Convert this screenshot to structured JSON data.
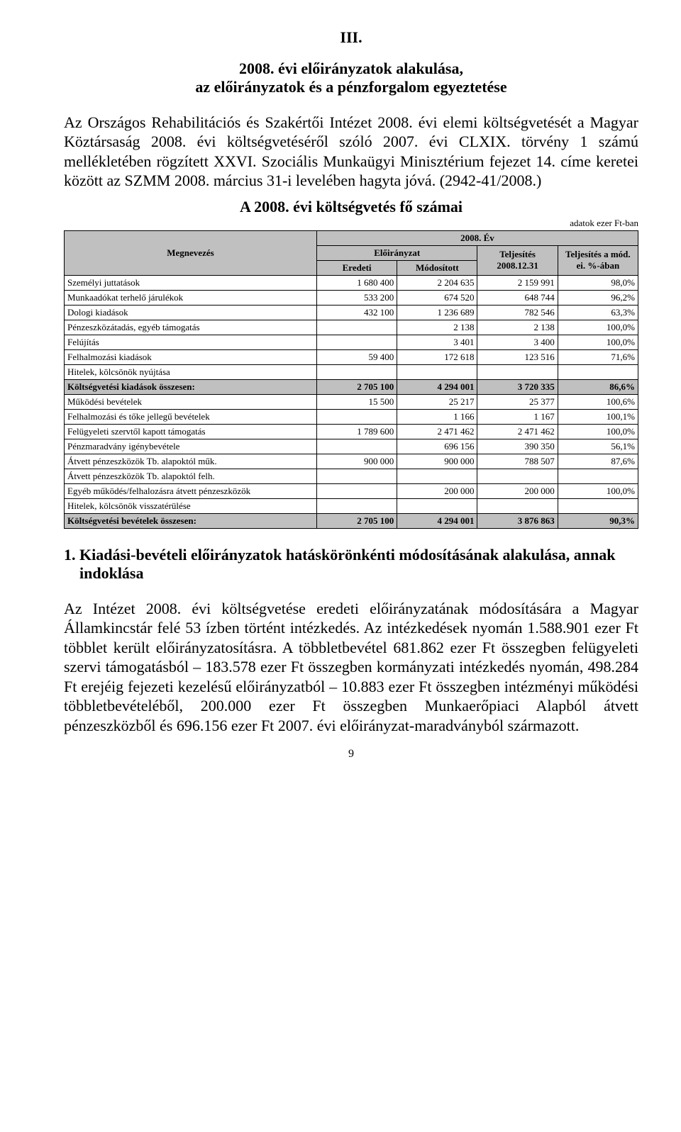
{
  "header": {
    "section_number": "III.",
    "title_line1": "2008. évi előirányzatok alakulása,",
    "title_line2": "az előirányzatok és a pénzforgalom egyeztetése"
  },
  "intro_paragraph": "Az Országos Rehabilitációs és Szakértői Intézet 2008. évi elemi költségvetését a Magyar Köztársaság 2008. évi költségvetéséről szóló 2007. évi CLXIX. törvény 1 számú mellékletében rögzített XXVI. Szociális Munkaügyi Minisztérium fejezet 14. címe keretei között az SZMM 2008. március 31-i levelében hagyta jóvá. (2942-41/2008.)",
  "table_title": "A 2008. évi költségvetés fő számai",
  "units_label": "adatok ezer Ft-ban",
  "table": {
    "head": {
      "megnevezes": "Megnevezés",
      "ev": "2008. Év",
      "eloiranyzat": "Előirányzat",
      "eredeti": "Eredeti",
      "modositott": "Módosított",
      "teljesites": "Teljesítés 2008.12.31",
      "teljesites_a": "Teljesítés a mód. ei. %-ában"
    },
    "rows": [
      {
        "label": "Személyi juttatások",
        "c1": "1 680 400",
        "c2": "2 204 635",
        "c3": "2 159 991",
        "c4": "98,0%",
        "total": false
      },
      {
        "label": "Munkaadókat terhelő járulékok",
        "c1": "533 200",
        "c2": "674 520",
        "c3": "648 744",
        "c4": "96,2%",
        "total": false
      },
      {
        "label": "Dologi kiadások",
        "c1": "432 100",
        "c2": "1 236 689",
        "c3": "782 546",
        "c4": "63,3%",
        "total": false
      },
      {
        "label": "Pénzeszközátadás, egyéb támogatás",
        "c1": "",
        "c2": "2 138",
        "c3": "2 138",
        "c4": "100,0%",
        "total": false
      },
      {
        "label": "Felújítás",
        "c1": "",
        "c2": "3 401",
        "c3": "3 400",
        "c4": "100,0%",
        "total": false
      },
      {
        "label": "Felhalmozási kiadások",
        "c1": "59 400",
        "c2": "172 618",
        "c3": "123 516",
        "c4": "71,6%",
        "total": false
      },
      {
        "label": "Hitelek, kölcsönök nyújtása",
        "c1": "",
        "c2": "",
        "c3": "",
        "c4": "",
        "total": false
      },
      {
        "label": "Költségvetési kiadások összesen:",
        "c1": "2 705 100",
        "c2": "4 294 001",
        "c3": "3 720 335",
        "c4": "86,6%",
        "total": true
      },
      {
        "label": "Működési bevételek",
        "c1": "15 500",
        "c2": "25 217",
        "c3": "25 377",
        "c4": "100,6%",
        "total": false
      },
      {
        "label": "Felhalmozási és tőke jellegű bevételek",
        "c1": "",
        "c2": "1 166",
        "c3": "1 167",
        "c4": "100,1%",
        "total": false
      },
      {
        "label": "Felügyeleti szervtől kapott támogatás",
        "c1": "1 789 600",
        "c2": "2 471 462",
        "c3": "2 471 462",
        "c4": "100,0%",
        "total": false
      },
      {
        "label": "Pénzmaradvány igénybevétele",
        "c1": "",
        "c2": "696 156",
        "c3": "390 350",
        "c4": "56,1%",
        "total": false
      },
      {
        "label": "Átvett pénzeszközök Tb. alapoktól műk.",
        "c1": "900 000",
        "c2": "900 000",
        "c3": "788 507",
        "c4": "87,6%",
        "total": false
      },
      {
        "label": "Átvett pénzeszközök Tb. alapoktól felh.",
        "c1": "",
        "c2": "",
        "c3": "",
        "c4": "",
        "total": false
      },
      {
        "label": "Egyéb működés/felhalozásra átvett pénzeszközök",
        "c1": "",
        "c2": "200 000",
        "c3": "200 000",
        "c4": "100,0%",
        "total": false
      },
      {
        "label": "Hitelek, kölcsönök visszatérülése",
        "c1": "",
        "c2": "",
        "c3": "",
        "c4": "",
        "total": false
      },
      {
        "label": "Költségvetési bevételek összesen:",
        "c1": "2 705 100",
        "c2": "4 294 001",
        "c3": "3 876 863",
        "c4": "90,3%",
        "total": true
      }
    ]
  },
  "section1_heading": "1. Kiadási-bevételi előirányzatok hatáskörönkénti módosításának alakulása, annak indoklása",
  "section1_body": "Az Intézet 2008. évi költségvetése eredeti előirányzatának módosítására a Magyar Államkincstár felé 53 ízben történt intézkedés. Az intézkedések nyomán 1.588.901 ezer Ft többlet került előirányzatosításra. A többletbevétel 681.862 ezer Ft összegben felügyeleti szervi támogatásból – 183.578 ezer Ft összegben kormányzati intézkedés nyomán, 498.284 Ft erejéig fejezeti kezelésű előirányzatból – 10.883 ezer Ft összegben intézményi működési többletbevételéből, 200.000 ezer Ft összegben Munkaerőpiaci Alapból átvett pénzeszközből és 696.156 ezer Ft 2007. évi előirányzat-maradványból származott.",
  "page_number": "9"
}
